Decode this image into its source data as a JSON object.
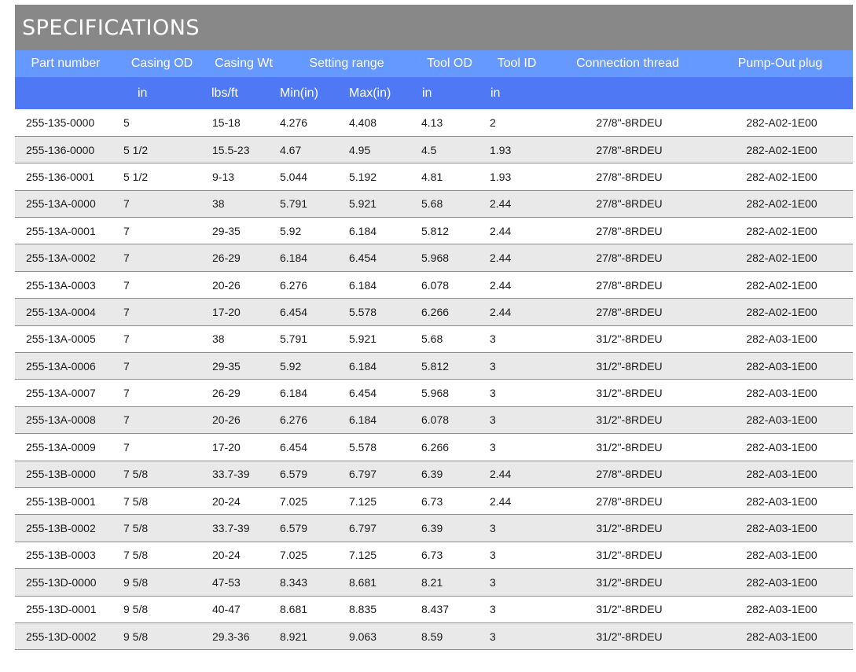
{
  "title": "SPECIFICATIONS",
  "colors": {
    "title_bg": "#888888",
    "header1_bg": "#6699ff",
    "header2_bg": "#4f78f5",
    "row_alt_bg": "#e9e9e9"
  },
  "headers": {
    "part_number": "Part number",
    "casing_od": "Casing OD",
    "casing_wt": "Casing Wt",
    "setting_range": "Setting range",
    "tool_od": "Tool OD",
    "tool_id": "Tool ID",
    "connection_thread": "Connection thread",
    "pump_out_plug": "Pump-Out plug"
  },
  "units": {
    "casing_od": "in",
    "casing_wt": "lbs/ft",
    "min": "Min(in)",
    "max": "Max(in)",
    "tool_od": "in",
    "tool_id": "in"
  },
  "rows": [
    [
      "255-135-0000",
      "5",
      "15-18",
      "4.276",
      "4.408",
      "4.13",
      "2",
      "27/8\"-8RDEU",
      "282-A02-1E00"
    ],
    [
      "255-136-0000",
      "5 1/2",
      "15.5-23",
      "4.67",
      "4.95",
      "4.5",
      "1.93",
      "27/8\"-8RDEU",
      "282-A02-1E00"
    ],
    [
      "255-136-0001",
      "5 1/2",
      "9-13",
      "5.044",
      "5.192",
      "4.81",
      "1.93",
      "27/8\"-8RDEU",
      "282-A02-1E00"
    ],
    [
      "255-13A-0000",
      "7",
      "38",
      "5.791",
      "5.921",
      "5.68",
      "2.44",
      "27/8\"-8RDEU",
      "282-A02-1E00"
    ],
    [
      "255-13A-0001",
      "7",
      "29-35",
      "5.92",
      "6.184",
      "5.812",
      "2.44",
      "27/8\"-8RDEU",
      "282-A02-1E00"
    ],
    [
      "255-13A-0002",
      "7",
      "26-29",
      "6.184",
      "6.454",
      "5.968",
      "2.44",
      "27/8\"-8RDEU",
      "282-A02-1E00"
    ],
    [
      "255-13A-0003",
      "7",
      "20-26",
      "6.276",
      "6.184",
      "6.078",
      "2.44",
      "27/8\"-8RDEU",
      "282-A02-1E00"
    ],
    [
      "255-13A-0004",
      "7",
      "17-20",
      "6.454",
      "5.578",
      "6.266",
      "2.44",
      "27/8\"-8RDEU",
      "282-A02-1E00"
    ],
    [
      "255-13A-0005",
      "7",
      "38",
      "5.791",
      "5.921",
      "5.68",
      "3",
      "31/2\"-8RDEU",
      "282-A03-1E00"
    ],
    [
      "255-13A-0006",
      "7",
      "29-35",
      "5.92",
      "6.184",
      "5.812",
      "3",
      "31/2\"-8RDEU",
      "282-A03-1E00"
    ],
    [
      "255-13A-0007",
      "7",
      "26-29",
      "6.184",
      "6.454",
      "5.968",
      "3",
      "31/2\"-8RDEU",
      "282-A03-1E00"
    ],
    [
      "255-13A-0008",
      "7",
      "20-26",
      "6.276",
      "6.184",
      "6.078",
      "3",
      "31/2\"-8RDEU",
      "282-A03-1E00"
    ],
    [
      "255-13A-0009",
      "7",
      "17-20",
      "6.454",
      "5.578",
      "6.266",
      "3",
      "31/2\"-8RDEU",
      "282-A03-1E00"
    ],
    [
      "255-13B-0000",
      "7 5/8",
      "33.7-39",
      "6.579",
      "6.797",
      "6.39",
      "2.44",
      "27/8\"-8RDEU",
      "282-A03-1E00"
    ],
    [
      "255-13B-0001",
      "7 5/8",
      "20-24",
      "7.025",
      "7.125",
      "6.73",
      "2.44",
      "27/8\"-8RDEU",
      "282-A03-1E00"
    ],
    [
      "255-13B-0002",
      "7 5/8",
      "33.7-39",
      "6.579",
      "6.797",
      "6.39",
      "3",
      "31/2\"-8RDEU",
      "282-A03-1E00"
    ],
    [
      "255-13B-0003",
      "7 5/8",
      "20-24",
      "7.025",
      "7.125",
      "6.73",
      "3",
      "31/2\"-8RDEU",
      "282-A03-1E00"
    ],
    [
      "255-13D-0000",
      "9 5/8",
      "47-53",
      "8.343",
      "8.681",
      "8.21",
      "3",
      "31/2\"-8RDEU",
      "282-A03-1E00"
    ],
    [
      "255-13D-0001",
      "9 5/8",
      "40-47",
      "8.681",
      "8.835",
      "8.437",
      "3",
      "31/2\"-8RDEU",
      "282-A03-1E00"
    ],
    [
      "255-13D-0002",
      "9 5/8",
      "29.3-36",
      "8.921",
      "9.063",
      "8.59",
      "3",
      "31/2\"-8RDEU",
      "282-A03-1E00"
    ]
  ]
}
